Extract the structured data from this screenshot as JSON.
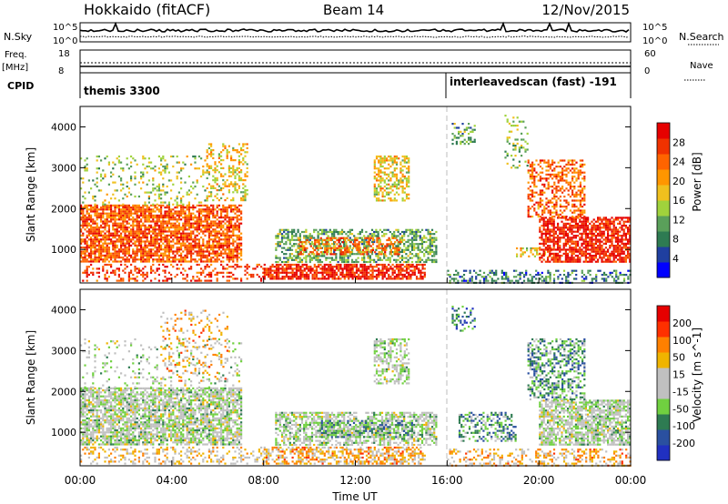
{
  "header": {
    "station": "Hokkaido (fitACF)",
    "beam": "Beam 14",
    "date": "12/Nov/2015"
  },
  "noise_panel": {
    "left_label": "N.Sky",
    "right_label": "N.Search",
    "left_ticks": [
      "10^5",
      "10^0"
    ],
    "right_ticks": [
      "10^5",
      "10^0"
    ]
  },
  "freq_panel": {
    "left_label_line1": "Freq.",
    "left_label_line2": "[MHz]",
    "right_label": "Nave",
    "left_ticks": [
      "18",
      "8"
    ],
    "right_ticks": [
      "60",
      "0"
    ]
  },
  "cpid_panel": {
    "label": "CPID",
    "segments": [
      "themis 3300",
      "interleavedscan (fast) -191"
    ]
  },
  "colors": {
    "power_scale": [
      "#0000ff",
      "#1f3fa0",
      "#2e7b52",
      "#5aa05a",
      "#a0d23c",
      "#f0c01e",
      "#ff9600",
      "#ff6400",
      "#f03200",
      "#e60000"
    ],
    "velocity_scale": [
      "#2030c0",
      "#2a50a0",
      "#2e7b52",
      "#70d040",
      "#c0c0c0",
      "#c0c0c0",
      "#f0b400",
      "#ff8000",
      "#ff3000",
      "#e60000"
    ]
  },
  "chart_data": [
    {
      "type": "heatmap",
      "name": "power",
      "xlabel": "",
      "ylabel": "Slant Range [km]",
      "xlim": [
        0,
        24
      ],
      "ylim": [
        180,
        4500
      ],
      "yticks": [
        "1000",
        "2000",
        "3000",
        "4000"
      ],
      "colorbar_label": "Power [dB]",
      "colorbar_ticks": [
        "4",
        "8",
        "12",
        "16",
        "20",
        "24",
        "28"
      ],
      "regions": [
        {
          "x0": 0.0,
          "x1": 7.0,
          "y0": 700,
          "y1": 2100,
          "level": 0.78,
          "density": 0.75
        },
        {
          "x0": 0.0,
          "x1": 5.5,
          "y0": 2100,
          "y1": 3300,
          "level": 0.45,
          "density": 0.18
        },
        {
          "x0": 5.5,
          "x1": 7.3,
          "y0": 2200,
          "y1": 3600,
          "level": 0.55,
          "density": 0.35
        },
        {
          "x0": 0.0,
          "x1": 8.0,
          "y0": 250,
          "y1": 650,
          "level": 0.85,
          "density": 0.3
        },
        {
          "x0": 8.0,
          "x1": 15.0,
          "y0": 300,
          "y1": 650,
          "level": 0.9,
          "density": 0.75
        },
        {
          "x0": 8.5,
          "x1": 15.5,
          "y0": 700,
          "y1": 1500,
          "level": 0.35,
          "density": 0.55
        },
        {
          "x0": 9.5,
          "x1": 14.0,
          "y0": 900,
          "y1": 1300,
          "level": 0.75,
          "density": 0.45
        },
        {
          "x0": 12.8,
          "x1": 14.3,
          "y0": 2200,
          "y1": 3300,
          "level": 0.55,
          "density": 0.55
        },
        {
          "x0": 16.0,
          "x1": 24.0,
          "y0": 200,
          "y1": 500,
          "level": 0.25,
          "density": 0.4
        },
        {
          "x0": 19.0,
          "x1": 20.5,
          "y0": 850,
          "y1": 1050,
          "level": 0.55,
          "density": 0.45
        },
        {
          "x0": 20.0,
          "x1": 24.0,
          "y0": 700,
          "y1": 1800,
          "level": 0.9,
          "density": 0.75
        },
        {
          "x0": 19.5,
          "x1": 22.0,
          "y0": 1800,
          "y1": 3200,
          "level": 0.75,
          "density": 0.5
        },
        {
          "x0": 16.2,
          "x1": 17.2,
          "y0": 3600,
          "y1": 4100,
          "level": 0.35,
          "density": 0.35
        },
        {
          "x0": 18.5,
          "x1": 19.5,
          "y0": 3000,
          "y1": 4300,
          "level": 0.4,
          "density": 0.2
        }
      ]
    },
    {
      "type": "heatmap",
      "name": "velocity",
      "xlabel": "Time UT",
      "ylabel": "Slant Range [km]",
      "xlim": [
        0,
        24
      ],
      "ylim": [
        180,
        4500
      ],
      "xticks": [
        "00:00",
        "04:00",
        "08:00",
        "12:00",
        "16:00",
        "20:00",
        "00:00"
      ],
      "yticks": [
        "1000",
        "2000",
        "3000",
        "4000"
      ],
      "colorbar_label": "Velocity [m s^-1]",
      "colorbar_ticks": [
        "200",
        "100",
        "50",
        "15",
        "-15",
        "-50",
        "-100",
        "-200"
      ],
      "regions": [
        {
          "x0": 0.0,
          "x1": 7.0,
          "y0": 700,
          "y1": 2100,
          "level": 0.45,
          "density": 0.75
        },
        {
          "x0": 0.0,
          "x1": 7.0,
          "y0": 2100,
          "y1": 3300,
          "level": 0.45,
          "density": 0.12
        },
        {
          "x0": 3.5,
          "x1": 6.5,
          "y0": 2200,
          "y1": 4000,
          "level": 0.65,
          "density": 0.15
        },
        {
          "x0": 0.0,
          "x1": 8.0,
          "y0": 250,
          "y1": 650,
          "level": 0.6,
          "density": 0.3
        },
        {
          "x0": 8.0,
          "x1": 15.0,
          "y0": 250,
          "y1": 650,
          "level": 0.65,
          "density": 0.6
        },
        {
          "x0": 8.5,
          "x1": 15.5,
          "y0": 700,
          "y1": 1500,
          "level": 0.45,
          "density": 0.6
        },
        {
          "x0": 10.5,
          "x1": 14.5,
          "y0": 900,
          "y1": 1300,
          "level": 0.3,
          "density": 0.5
        },
        {
          "x0": 12.8,
          "x1": 14.3,
          "y0": 2200,
          "y1": 3300,
          "level": 0.45,
          "density": 0.5
        },
        {
          "x0": 16.0,
          "x1": 24.0,
          "y0": 200,
          "y1": 600,
          "level": 0.65,
          "density": 0.35
        },
        {
          "x0": 16.5,
          "x1": 19.0,
          "y0": 800,
          "y1": 1500,
          "level": 0.3,
          "density": 0.45
        },
        {
          "x0": 20.0,
          "x1": 24.0,
          "y0": 700,
          "y1": 1800,
          "level": 0.45,
          "density": 0.75
        },
        {
          "x0": 19.5,
          "x1": 22.0,
          "y0": 1800,
          "y1": 3300,
          "level": 0.3,
          "density": 0.5
        },
        {
          "x0": 16.2,
          "x1": 17.2,
          "y0": 3500,
          "y1": 4100,
          "level": 0.2,
          "density": 0.3
        }
      ]
    }
  ]
}
